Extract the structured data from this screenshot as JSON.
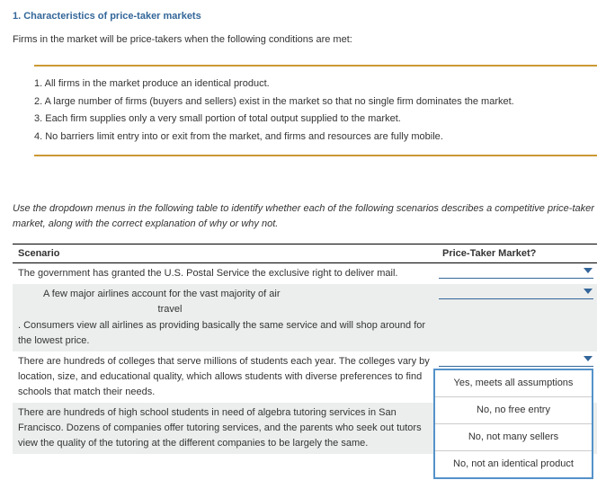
{
  "heading": "1. Characteristics of price-taker markets",
  "intro": "Firms in the market will be price-takers when the following conditions are met:",
  "conditions": [
    "1. All firms in the market produce an identical product.",
    "2. A large number of firms (buyers and sellers) exist in the market so that no single firm dominates the market.",
    "3. Each firm supplies only a very small portion of total output supplied to the market.",
    "4. No barriers limit entry into or exit from the market, and firms and resources are fully mobile."
  ],
  "prompt": "Use the dropdown menus in the following table to identify whether each of the following scenarios describes a competitive price-taker market, along with the correct explanation of why or why not.",
  "table": {
    "col_scenario": "Scenario",
    "col_answer": "Price-Taker Market?",
    "rows": [
      {
        "text": "The government has granted the U.S. Postal Service the exclusive right to deliver mail."
      },
      {
        "line1": "A few major airlines account for the vast majority of air",
        "line2": "travel",
        "line3": ". Consumers view all airlines as providing basically the same service and will shop around for the lowest price."
      },
      {
        "text": "There are hundreds of colleges that serve millions of students each year. The colleges vary by location, size, and educational quality, which allows students with diverse preferences to find schools that match their needs."
      },
      {
        "text": "There are hundreds of high school students in need of algebra tutoring services in San Francisco. Dozens of companies offer tutoring services, and the parents who seek out tutors view the quality of the tutoring at the different companies to be largely the same."
      }
    ]
  },
  "menu": {
    "opt1": "Yes, meets all assumptions",
    "opt2": "No, no free entry",
    "opt3": "No, not many sellers",
    "opt4": "No, not an identical product"
  }
}
